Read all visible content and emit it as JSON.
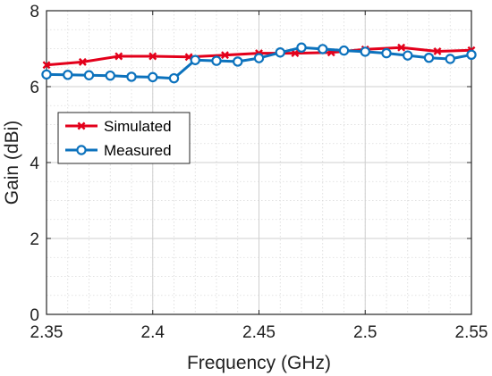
{
  "chart_data": {
    "type": "line",
    "xlabel": "Frequency (GHz)",
    "ylabel": "Gain (dBi)",
    "xlim": [
      2.35,
      2.55
    ],
    "ylim": [
      0,
      8
    ],
    "xticks": [
      2.35,
      2.4,
      2.45,
      2.5,
      2.55
    ],
    "xtick_labels": [
      "2.35",
      "2.4",
      "2.45",
      "2.5",
      "2.55"
    ],
    "yticks": [
      0,
      2,
      4,
      6,
      8
    ],
    "ytick_labels": [
      "0",
      "2",
      "4",
      "6",
      "8"
    ],
    "grid": true,
    "minor_grid": true,
    "legend_position": "middle-left",
    "series": [
      {
        "name": "Simulated",
        "color": "#e3001b",
        "marker": "x",
        "x": [
          2.35,
          2.367,
          2.384,
          2.4,
          2.417,
          2.434,
          2.45,
          2.467,
          2.484,
          2.5,
          2.517,
          2.534,
          2.55
        ],
        "y": [
          6.57,
          6.65,
          6.8,
          6.8,
          6.78,
          6.83,
          6.88,
          6.88,
          6.9,
          6.98,
          7.03,
          6.93,
          6.96
        ]
      },
      {
        "name": "Measured",
        "color": "#0c72bd",
        "marker": "o",
        "x": [
          2.35,
          2.36,
          2.37,
          2.38,
          2.39,
          2.4,
          2.41,
          2.42,
          2.43,
          2.44,
          2.45,
          2.46,
          2.47,
          2.48,
          2.49,
          2.5,
          2.51,
          2.52,
          2.53,
          2.54,
          2.55
        ],
        "y": [
          6.32,
          6.31,
          6.3,
          6.29,
          6.26,
          6.25,
          6.22,
          6.7,
          6.68,
          6.66,
          6.75,
          6.9,
          7.03,
          6.99,
          6.95,
          6.92,
          6.88,
          6.82,
          6.76,
          6.73,
          6.84
        ]
      }
    ]
  }
}
